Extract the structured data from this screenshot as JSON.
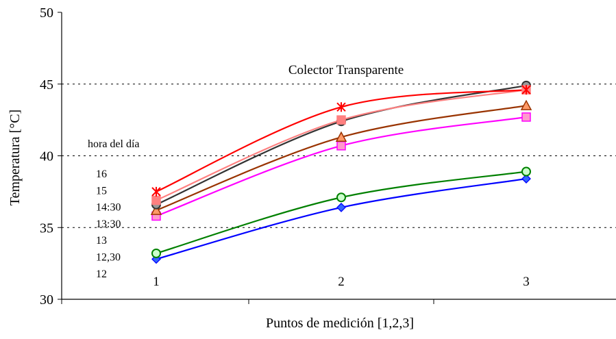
{
  "chart_data": {
    "type": "line",
    "title": "Colector Transparente",
    "xlabel": "Puntos de medición [1,2,3]",
    "ylabel": "Temperatura [°C]",
    "ylim": [
      30,
      50
    ],
    "yticks": [
      "30",
      "35",
      "40",
      "45",
      "50"
    ],
    "x": [
      1,
      2,
      3
    ],
    "x_tick_labels": [
      "1",
      "2",
      "3"
    ],
    "grid": "horizontal dotted",
    "legend_title": "hora del día",
    "legend_placement": "left, inside plot",
    "legend_entries": [
      "16",
      "15",
      "14:30",
      "13:30",
      "13",
      "12,30",
      "12"
    ],
    "series": [
      {
        "name": "12",
        "values": [
          32.8,
          36.4,
          38.4
        ],
        "color": "#0000ff",
        "marker": "diamond",
        "marker_fill": "#3366ff"
      },
      {
        "name": "12,30",
        "values": [
          33.2,
          37.1,
          38.9
        ],
        "color": "#008000",
        "marker": "circle",
        "marker_fill": "#ccffcc"
      },
      {
        "name": "13",
        "values": [
          35.8,
          40.7,
          42.7
        ],
        "color": "#ff00ff",
        "marker": "square",
        "marker_fill": "#ff99cc"
      },
      {
        "name": "13:30",
        "values": [
          36.2,
          41.3,
          43.5
        ],
        "color": "#993300",
        "marker": "triangle",
        "marker_fill": "#ff9966"
      },
      {
        "name": "14:30",
        "values": [
          36.6,
          42.4,
          44.9
        ],
        "color": "#333333",
        "marker": "circle",
        "marker_fill": "#999999"
      },
      {
        "name": "15",
        "values": [
          36.9,
          42.5,
          44.6
        ],
        "color": "#ff8080",
        "marker": "square",
        "marker_fill": "#ff8080"
      },
      {
        "name": "16",
        "values": [
          37.5,
          43.4,
          44.6
        ],
        "color": "#ff0000",
        "marker": "star",
        "marker_fill": "#ff0000"
      }
    ]
  }
}
